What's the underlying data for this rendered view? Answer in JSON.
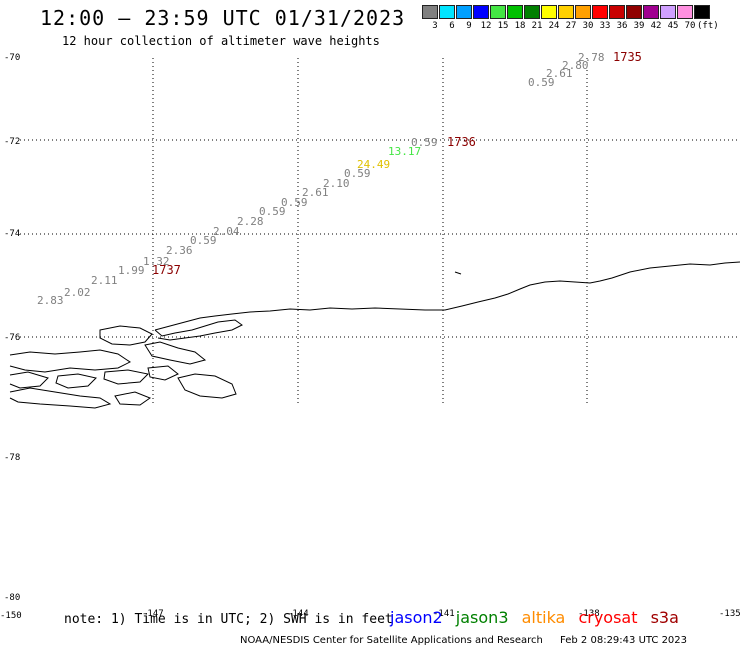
{
  "title": "12:00 – 23:59 UTC 01/31/2023",
  "subtitle": "12 hour collection of altimeter wave heights",
  "legend": {
    "colors": [
      "#808080",
      "#00e5ff",
      "#00a0ff",
      "#0000ff",
      "#44e644",
      "#00c000",
      "#008000",
      "#ffff00",
      "#ffd000",
      "#ffa000",
      "#ff0000",
      "#c80000",
      "#900000",
      "#a00090",
      "#d0a0ff",
      "#ff90e0",
      "#000000"
    ],
    "labels": [
      "3",
      "6",
      "9",
      "12",
      "15",
      "18",
      "21",
      "24",
      "27",
      "30",
      "33",
      "36",
      "39",
      "42",
      "45",
      "70",
      "(ft)"
    ]
  },
  "lat_labels": [
    "-70",
    "-72",
    "-74",
    "-76",
    "-78",
    "-80"
  ],
  "lon_labels": [
    "-150",
    "-147",
    "-144",
    "-141",
    "-138",
    "-135"
  ],
  "wave_heights": [
    {
      "v": "2.83",
      "c": "#808080"
    },
    {
      "v": "2.02",
      "c": "#808080"
    },
    {
      "v": "2.11",
      "c": "#808080"
    },
    {
      "v": "1.99",
      "c": "#808080"
    },
    {
      "v": "1.32",
      "c": "#808080"
    },
    {
      "v": "2.36",
      "c": "#808080"
    },
    {
      "v": "0.59",
      "c": "#808080"
    },
    {
      "v": "2.04",
      "c": "#808080"
    },
    {
      "v": "2.28",
      "c": "#808080"
    },
    {
      "v": "0.59",
      "c": "#808080"
    },
    {
      "v": "0.59",
      "c": "#808080"
    },
    {
      "v": "2.61",
      "c": "#808080"
    },
    {
      "v": "2.10",
      "c": "#808080"
    },
    {
      "v": "0.59",
      "c": "#808080"
    },
    {
      "v": "24.49",
      "c": "#e0c000"
    },
    {
      "v": "13.17",
      "c": "#44e644"
    },
    {
      "v": "0.59",
      "c": "#808080"
    },
    {
      "v": "0.59",
      "c": "#808080"
    },
    {
      "v": "2.61",
      "c": "#808080"
    },
    {
      "v": "2.80",
      "c": "#808080"
    },
    {
      "v": "2.78",
      "c": "#808080"
    }
  ],
  "pass_times": [
    "1737",
    "1736",
    "1735"
  ],
  "pass_color": "#8b0000",
  "note": "note: 1) Time is in UTC; 2) SWH is in feet",
  "satellites": [
    {
      "name": "jason2",
      "color": "#0000ff"
    },
    {
      "name": "jason3",
      "color": "#008000"
    },
    {
      "name": "altika",
      "color": "#ff8c00"
    },
    {
      "name": "cryosat",
      "color": "#ff0000"
    },
    {
      "name": "s3a",
      "color": "#a00000"
    }
  ],
  "footer_agency": "NOAA/NESDIS Center for Satellite Applications and Research",
  "footer_time": "Feb  2 08:29:43 UTC 2023"
}
